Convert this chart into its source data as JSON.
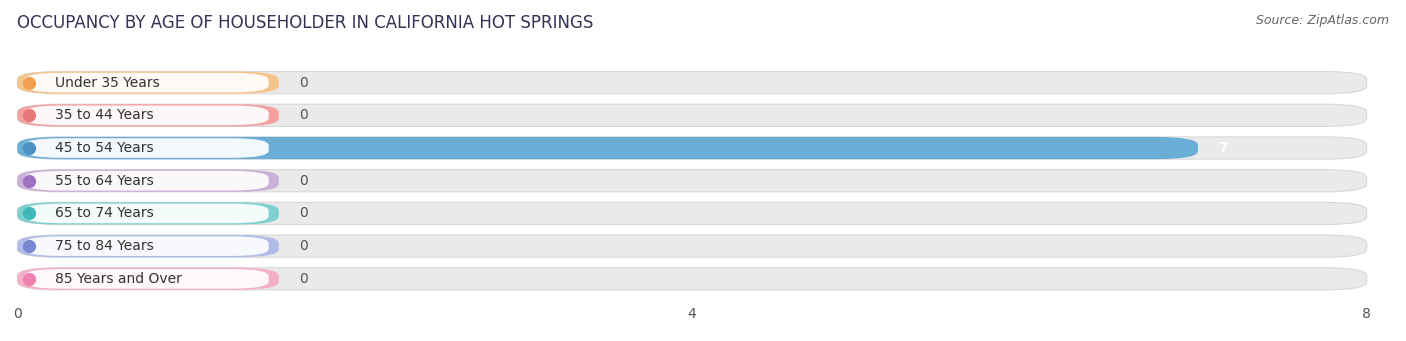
{
  "title": "OCCUPANCY BY AGE OF HOUSEHOLDER IN CALIFORNIA HOT SPRINGS",
  "source": "Source: ZipAtlas.com",
  "categories": [
    "Under 35 Years",
    "35 to 44 Years",
    "45 to 54 Years",
    "55 to 64 Years",
    "65 to 74 Years",
    "75 to 84 Years",
    "85 Years and Over"
  ],
  "values": [
    0,
    0,
    7,
    0,
    0,
    0,
    0
  ],
  "bar_colors": [
    "#f5c48a",
    "#f5a0a0",
    "#6aaed6",
    "#c9b0d8",
    "#7ecfcf",
    "#b0bce8",
    "#f5b0c8"
  ],
  "dot_colors": [
    "#f0a050",
    "#e87878",
    "#4a90c4",
    "#a070c0",
    "#40b8b8",
    "#7888d0",
    "#f080b0"
  ],
  "background_color": "#ffffff",
  "bar_bg_color": "#eaeaea",
  "bar_bg_border": "#d8d8d8",
  "xlim": [
    0,
    8
  ],
  "xticks": [
    0,
    4,
    8
  ],
  "title_fontsize": 12,
  "label_fontsize": 10,
  "tick_fontsize": 10,
  "source_fontsize": 9,
  "value_fontsize": 10
}
